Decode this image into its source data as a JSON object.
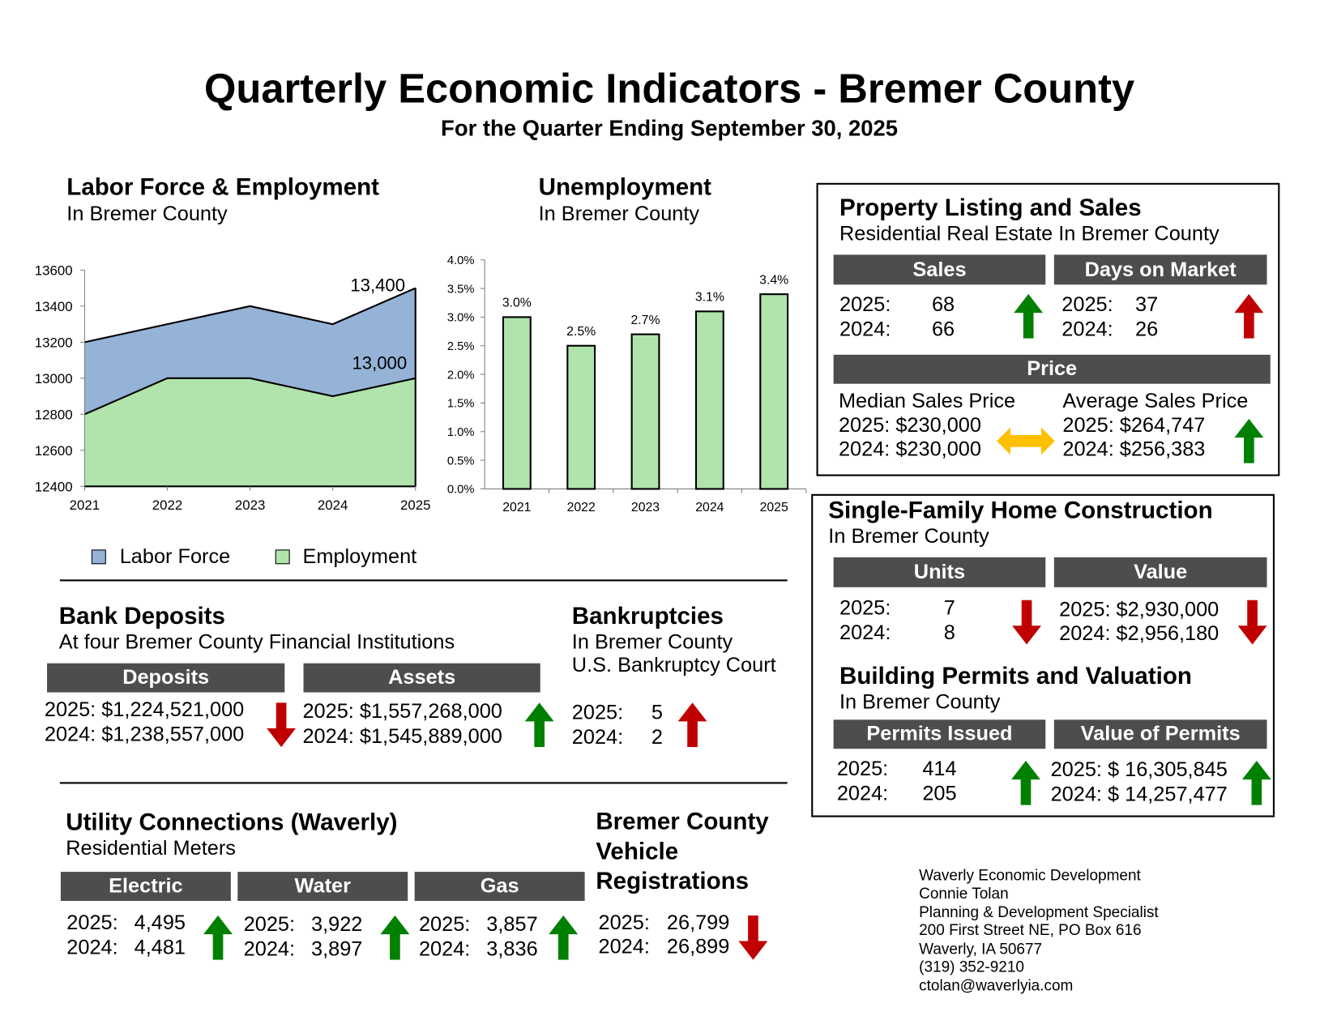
{
  "header": {
    "title": "Quarterly Economic Indicators - Bremer County",
    "subtitle": "For the Quarter Ending September 30, 2025"
  },
  "labor": {
    "title": "Labor Force & Employment",
    "subtitle": "In Bremer County",
    "legend": [
      "Labor Force",
      "Employment"
    ]
  },
  "unemployment": {
    "title": "Unemployment",
    "subtitle": "In Bremer County"
  },
  "chart_data": [
    {
      "type": "area",
      "title": "Labor Force & Employment",
      "x": [
        "2021",
        "2022",
        "2023",
        "2024",
        "2025"
      ],
      "series": [
        {
          "name": "Labor Force",
          "values": [
            13200,
            13300,
            13400,
            13300,
            13500
          ],
          "color": "#95b3d7"
        },
        {
          "name": "Employment",
          "values": [
            12800,
            13000,
            13000,
            12900,
            13000
          ],
          "color": "#b0e4ac"
        }
      ],
      "ylim": [
        12400,
        13600
      ],
      "yticks": [
        "12400",
        "12600",
        "12800",
        "13000",
        "13200",
        "13400",
        "13600"
      ],
      "annotations": [
        "13,400",
        "13,000"
      ],
      "legend": "bottom"
    },
    {
      "type": "bar",
      "title": "Unemployment",
      "categories": [
        "2021",
        "2022",
        "2023",
        "2024",
        "2025"
      ],
      "values": [
        3.0,
        2.5,
        2.7,
        3.1,
        3.4
      ],
      "labels": [
        "3.0%",
        "2.5%",
        "2.7%",
        "3.1%",
        "3.4%"
      ],
      "ylim": [
        0,
        4
      ],
      "yticks": [
        "0.0%",
        "0.5%",
        "1.0%",
        "1.5%",
        "2.0%",
        "2.5%",
        "3.0%",
        "3.5%",
        "4.0%"
      ],
      "color": "#b0e4ac"
    }
  ],
  "property": {
    "title": "Property Listing and Sales",
    "subtitle": "Residential Real Estate In Bremer County",
    "sales": {
      "header": "Sales",
      "r2025": "2025:",
      "v2025": "68",
      "r2024": "2024:",
      "v2024": "66"
    },
    "days": {
      "header": "Days on Market",
      "r2025": "2025:",
      "v2025": "37",
      "r2024": "2024:",
      "v2024": "26"
    },
    "price": {
      "header": "Price",
      "median_label": "Median Sales Price",
      "median_2025": "2025:  $230,000",
      "median_2024": "2024:  $230,000",
      "average_label": "Average Sales Price",
      "average_2025": "2025:  $264,747",
      "average_2024": "2024:  $256,383"
    }
  },
  "construction": {
    "title": "Single-Family Home Construction",
    "subtitle": "In Bremer County",
    "units": {
      "header": "Units",
      "r2025": "2025:",
      "v2025": "7",
      "r2024": "2024:",
      "v2024": "8"
    },
    "value": {
      "header": "Value",
      "v2025": "2025: $2,930,000",
      "v2024": "2024: $2,956,180"
    },
    "permits_title": "Building Permits and Valuation",
    "permits_subtitle": "In Bremer County",
    "permits": {
      "header": "Permits Issued",
      "r2025": "2025:",
      "v2025": "414",
      "r2024": "2024:",
      "v2024": "205"
    },
    "permit_value": {
      "header": "Value of Permits",
      "v2025": "2025: $ 16,305,845",
      "v2024": "2024: $ 14,257,477"
    }
  },
  "bank": {
    "title": "Bank Deposits",
    "subtitle": "At four Bremer County Financial Institutions",
    "deposits": {
      "header": "Deposits",
      "v2025": "2025: $1,224,521,000",
      "v2024": "2024: $1,238,557,000"
    },
    "assets": {
      "header": "Assets",
      "v2025": "2025: $1,557,268,000",
      "v2024": "2024: $1,545,889,000"
    }
  },
  "bankruptcies": {
    "title": "Bankruptcies",
    "subtitle": "In Bremer County",
    "subtitle2": "U.S. Bankruptcy Court",
    "r2025": "2025:",
    "v2025": "5",
    "r2024": "2024:",
    "v2024": "2"
  },
  "utility": {
    "title": "Utility Connections (Waverly)",
    "subtitle": "Residential Meters",
    "electric": {
      "header": "Electric",
      "r2025": "2025:",
      "v2025": "4,495",
      "r2024": "2024:",
      "v2024": "4,481"
    },
    "water": {
      "header": "Water",
      "r2025": "2025:",
      "v2025": "3,922",
      "r2024": "2024:",
      "v2024": "3,897"
    },
    "gas": {
      "header": "Gas",
      "r2025": "2025:",
      "v2025": "3,857",
      "r2024": "2024:",
      "v2024": "3,836"
    }
  },
  "vehicle": {
    "title1": "Bremer County",
    "title2": "Vehicle",
    "title3": "Registrations",
    "r2025": "2025:",
    "v2025": "26,799",
    "r2024": "2024:",
    "v2024": "26,899"
  },
  "contact": [
    "Waverly Economic Development",
    "Connie Tolan",
    "Planning & Development Specialist",
    "200 First Street NE, PO Box 616",
    "Waverly, IA 50677",
    "(319) 352-9210",
    "ctolan@waverlyia.com"
  ],
  "colors": {
    "up": "#008000",
    "down": "#c00000",
    "neutral": "#ffc000",
    "header_bar": "#4d4d4d"
  }
}
